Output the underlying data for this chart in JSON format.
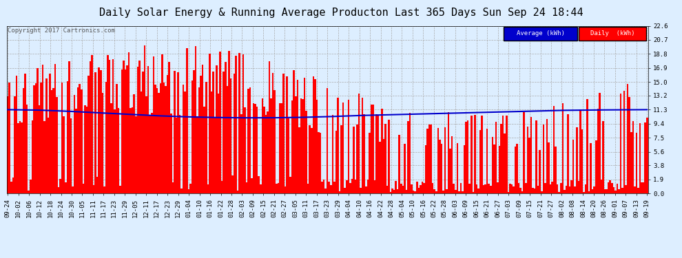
{
  "title": "Daily Solar Energy & Running Average Producton Last 365 Days Sun Sep 24 18:44",
  "copyright": "Copyright 2017 Cartronics.com",
  "bar_color": "#ff0000",
  "avg_line_color": "#0000cc",
  "bg_color": "#ddeeff",
  "plot_bg_color": "#ddeeff",
  "grid_color": "#aaaaaa",
  "ylim": [
    0.0,
    22.6
  ],
  "yticks": [
    0.0,
    1.9,
    3.8,
    5.6,
    7.5,
    9.4,
    11.3,
    13.2,
    15.0,
    16.9,
    18.8,
    20.7,
    22.6
  ],
  "legend_avg_label": "Average (kWh)",
  "legend_daily_label": "Daily  (kWh)",
  "legend_avg_bg": "#0000cc",
  "legend_daily_bg": "#ff0000",
  "title_fontsize": 11,
  "tick_fontsize": 6.5,
  "copyright_fontsize": 6.5,
  "num_bars": 365,
  "x_tick_labels": [
    "09-24",
    "10-02",
    "10-06",
    "10-12",
    "10-18",
    "10-24",
    "10-30",
    "11-05",
    "11-11",
    "11-17",
    "11-23",
    "11-29",
    "12-05",
    "12-11",
    "12-17",
    "12-23",
    "12-29",
    "01-04",
    "01-10",
    "01-16",
    "01-22",
    "01-28",
    "02-03",
    "02-09",
    "02-15",
    "02-21",
    "02-27",
    "03-05",
    "03-11",
    "03-17",
    "03-23",
    "03-29",
    "04-04",
    "04-10",
    "04-16",
    "04-22",
    "04-28",
    "05-04",
    "05-10",
    "05-16",
    "05-22",
    "05-28",
    "06-03",
    "06-09",
    "06-15",
    "06-21",
    "06-27",
    "07-03",
    "07-09",
    "07-15",
    "07-21",
    "07-27",
    "08-02",
    "08-08",
    "08-14",
    "08-20",
    "08-26",
    "09-01",
    "09-07",
    "09-13",
    "09-19"
  ],
  "avg_curve_points": [
    11.3,
    11.25,
    11.1,
    10.9,
    10.7,
    10.5,
    10.35,
    10.25,
    10.2,
    10.2,
    10.25,
    10.35,
    10.5,
    10.6,
    10.7,
    10.8,
    10.9,
    11.0,
    11.1,
    11.2,
    11.25,
    11.28,
    11.3
  ]
}
